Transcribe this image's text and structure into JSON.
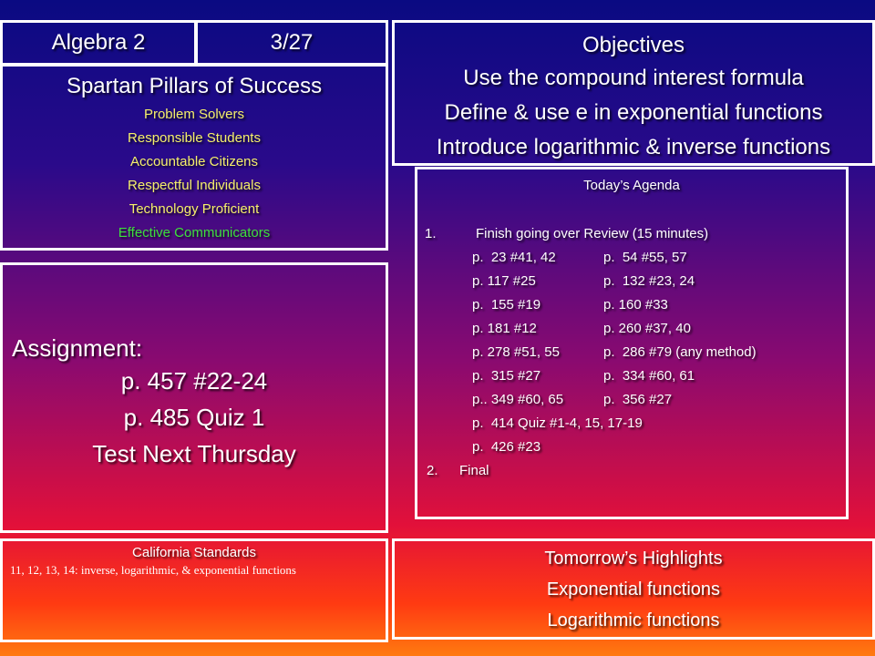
{
  "header": {
    "course": "Algebra 2",
    "date": "3/27"
  },
  "pillars": {
    "title": "Spartan Pillars of Success",
    "items": [
      "Problem Solvers",
      "Responsible Students",
      "Accountable Citizens",
      "Respectful Individuals",
      "Technology Proficient",
      "Effective Communicators"
    ]
  },
  "objectives": {
    "title": "Objectives",
    "items": [
      "Use the compound interest formula",
      "Define & use e in exponential functions",
      "Introduce logarithmic & inverse functions"
    ]
  },
  "assignment": {
    "label": "Assignment:",
    "lines": [
      "p. 457 #22-24",
      "p.  485 Quiz 1",
      "Test Next Thursday"
    ]
  },
  "agenda": {
    "title": "Today’s Agenda",
    "item1_number": "1.",
    "item1_label": "Finish going over Review (15 minutes)",
    "pages": [
      [
        "p.  23 #41, 42",
        "p.  54 #55, 57"
      ],
      [
        "p. 117 #25",
        "p.  132 #23, 24"
      ],
      [
        "p.  155 #19",
        "p. 160 #33"
      ],
      [
        "p. 181 #12",
        "p. 260 #37, 40"
      ],
      [
        "p. 278 #51, 55",
        "p.  286 #79 (any method)"
      ],
      [
        "p.  315 #27",
        "p.  334 #60, 61"
      ],
      [
        "p.. 349 #60, 65",
        "p.  356 #27"
      ],
      [
        "p.  414 Quiz #1-4, 15, 17-19",
        ""
      ],
      [
        "p.  426 #23",
        ""
      ]
    ],
    "item2_number": "2.",
    "item2_label": "Final"
  },
  "standards": {
    "title": "California Standards",
    "text": "11, 12, 13, 14:  inverse, logarithmic, &  exponential functions"
  },
  "tomorrow": {
    "title": "Tomorrow’s Highlights",
    "items": [
      "Exponential functions",
      "Logarithmic functions"
    ]
  },
  "colors": {
    "border": "#ffffff",
    "pillar_item": "#f5f06a",
    "pillar_item_last": "#3ce03c"
  }
}
